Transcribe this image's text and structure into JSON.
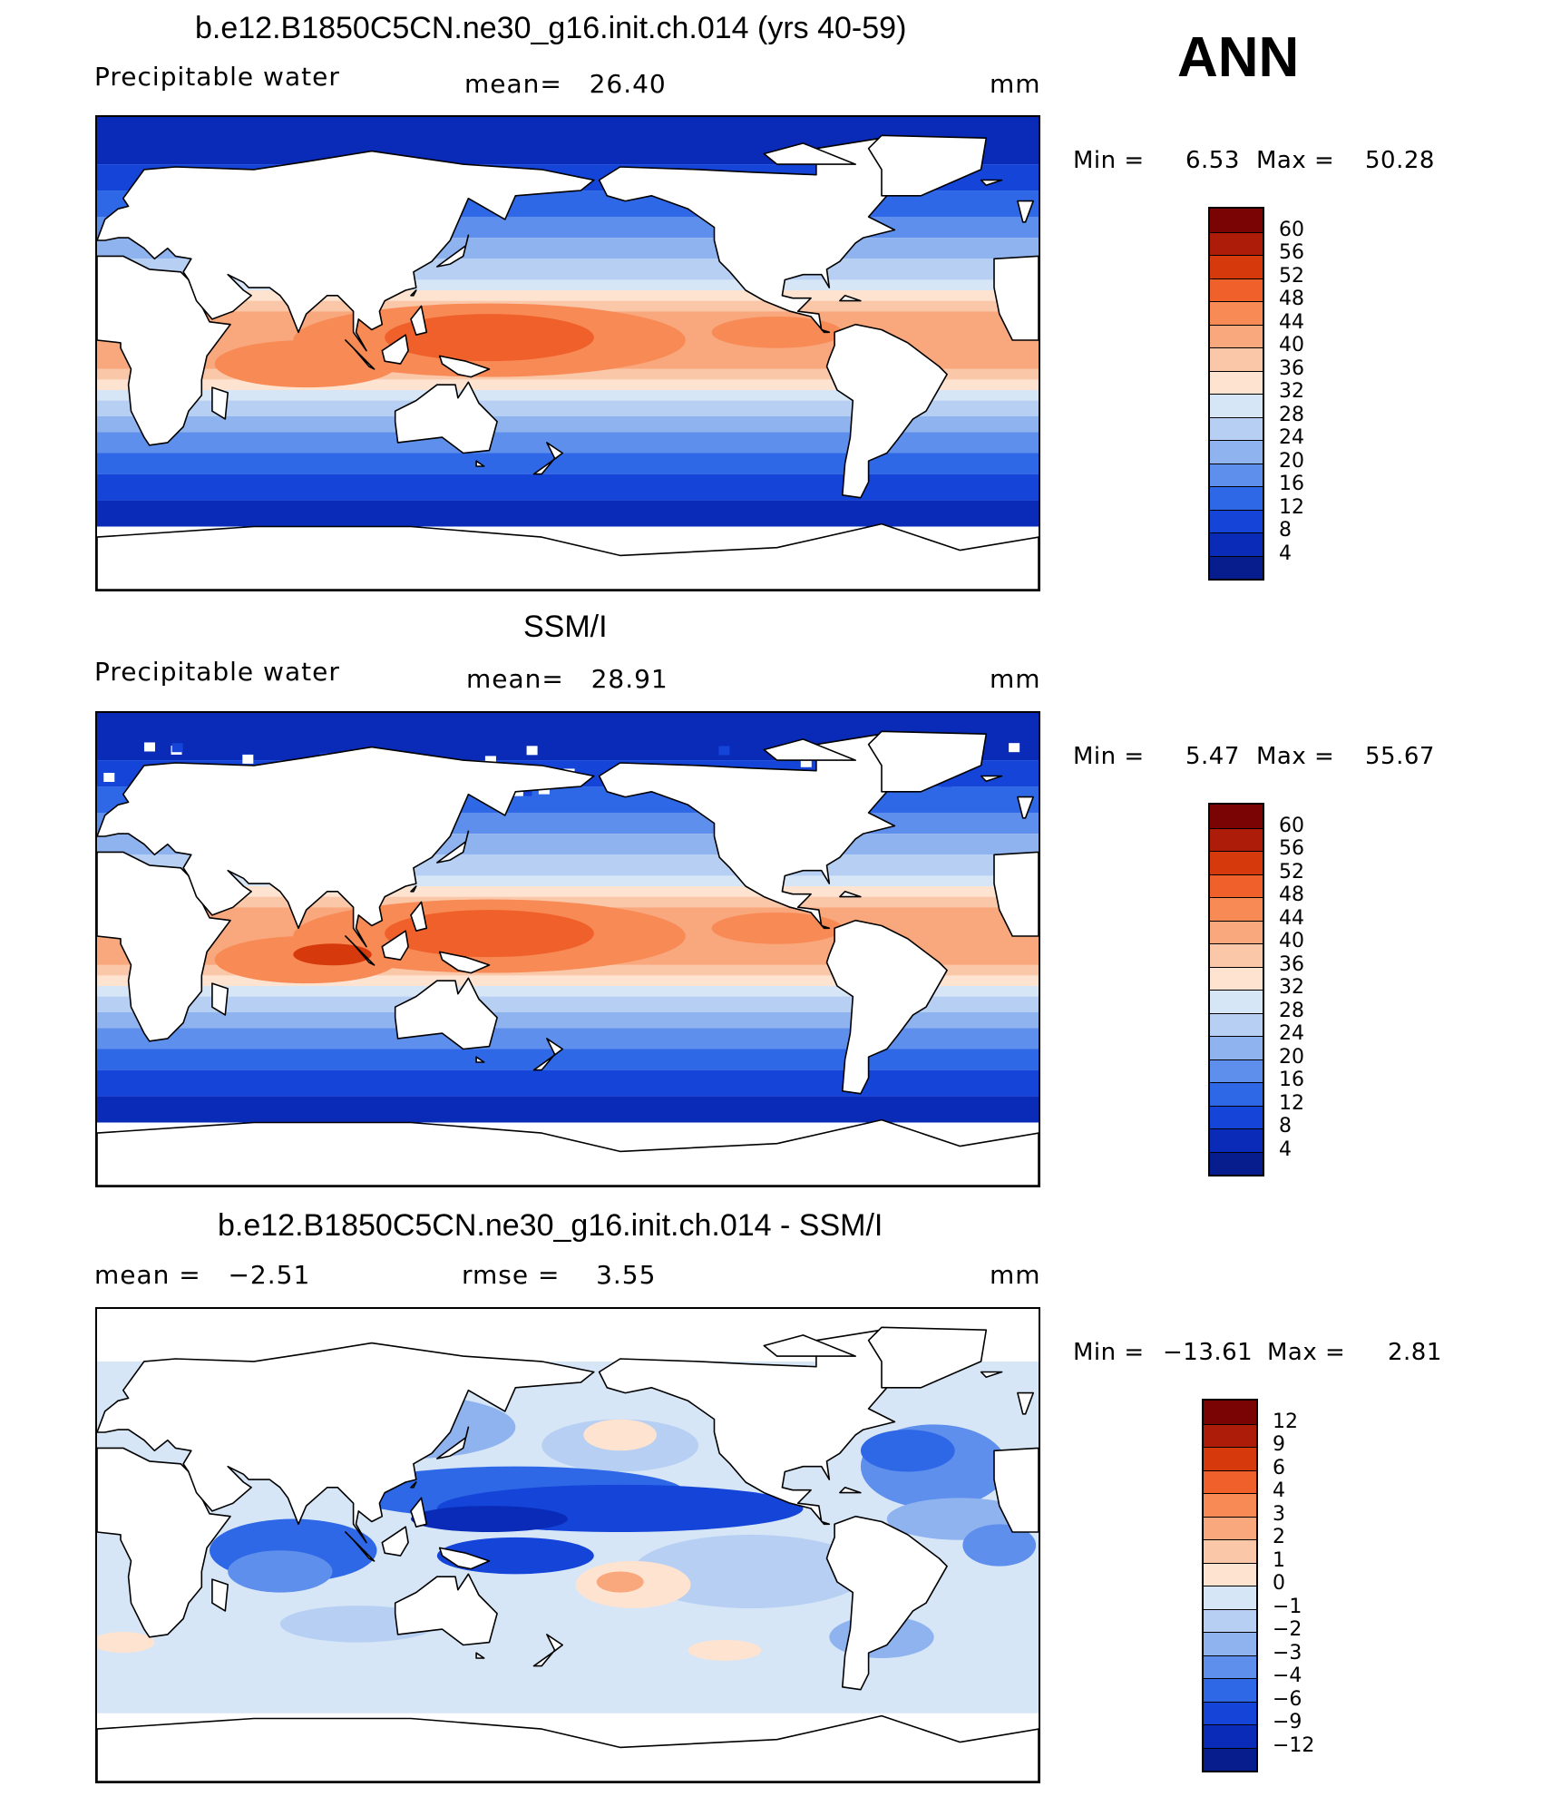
{
  "season": "ANN",
  "panels": [
    {
      "title": "b.e12.B1850C5CN.ne30_g16.init.ch.014 (yrs 40-59)",
      "left_label": "Precipitable water",
      "center_label": "mean=   26.40",
      "units": "mm",
      "min": "6.53",
      "max": "50.28",
      "min_label": "Min =",
      "max_label": "Max =",
      "colorbar": {
        "levels": [
          "60",
          "56",
          "52",
          "48",
          "44",
          "40",
          "36",
          "32",
          "28",
          "24",
          "20",
          "16",
          "12",
          "8",
          "4"
        ],
        "colors": [
          "#7a0403",
          "#ad1c08",
          "#d63a0c",
          "#f0602a",
          "#f78a55",
          "#f9a77c",
          "#fbc7a9",
          "#fde3d0",
          "#d6e6f7",
          "#b6cff3",
          "#8fb3ef",
          "#5e8fec",
          "#2f68e6",
          "#1444d8",
          "#0a2bb8",
          "#071d8e"
        ]
      },
      "map_style": "model"
    },
    {
      "title": "SSM/I",
      "left_label": "Precipitable water",
      "center_label": "mean=   28.91",
      "units": "mm",
      "min": "5.47",
      "max": "55.67",
      "min_label": "Min =",
      "max_label": "Max =",
      "colorbar": {
        "levels": [
          "60",
          "56",
          "52",
          "48",
          "44",
          "40",
          "36",
          "32",
          "28",
          "24",
          "20",
          "16",
          "12",
          "8",
          "4"
        ],
        "colors": [
          "#7a0403",
          "#ad1c08",
          "#d63a0c",
          "#f0602a",
          "#f78a55",
          "#f9a77c",
          "#fbc7a9",
          "#fde3d0",
          "#d6e6f7",
          "#b6cff3",
          "#8fb3ef",
          "#5e8fec",
          "#2f68e6",
          "#1444d8",
          "#0a2bb8",
          "#071d8e"
        ]
      },
      "map_style": "obs"
    },
    {
      "title": "b.e12.B1850C5CN.ne30_g16.init.ch.014 - SSM/I",
      "left_label": "mean =   −2.51",
      "center_label": "rmse =    3.55",
      "units": "mm",
      "min": "−13.61",
      "max": "2.81",
      "min_label": "Min =",
      "max_label": "Max =",
      "colorbar": {
        "levels": [
          "12",
          "9",
          "6",
          "4",
          "3",
          "2",
          "1",
          "0",
          "−1",
          "−2",
          "−3",
          "−4",
          "−6",
          "−9",
          "−12"
        ],
        "colors": [
          "#7a0403",
          "#ad1c08",
          "#d63a0c",
          "#f0602a",
          "#f78a55",
          "#f9a77c",
          "#fbc7a9",
          "#fde3d0",
          "#d6e6f7",
          "#b6cff3",
          "#8fb3ef",
          "#5e8fec",
          "#2f68e6",
          "#1444d8",
          "#0a2bb8",
          "#071d8e"
        ]
      },
      "map_style": "diff"
    }
  ]
}
